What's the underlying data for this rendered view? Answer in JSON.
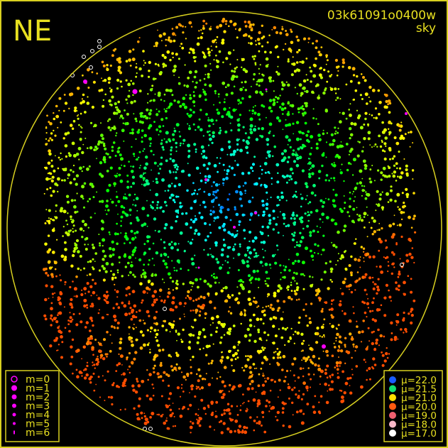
{
  "header": {
    "direction": "NE",
    "frame_id": "03k61091o0400w",
    "frame_type": "sky"
  },
  "colors": {
    "frame": "#d8d020",
    "label_text": "#e8e020",
    "star_marker": "#ff00ff"
  },
  "magnitude_legend": [
    {
      "label": "m=0"
    },
    {
      "label": "m=1"
    },
    {
      "label": "m=2"
    },
    {
      "label": "m=3"
    },
    {
      "label": "m=4"
    },
    {
      "label": "m=5"
    },
    {
      "label": "m=6"
    }
  ],
  "brightness_legend": [
    {
      "label": "μ=22.0",
      "color": "#1a5cff"
    },
    {
      "label": "μ=21.5",
      "color": "#10e070"
    },
    {
      "label": "μ=21.0",
      "color": "#ffe000"
    },
    {
      "label": "μ=20.0",
      "color": "#ff5a10"
    },
    {
      "label": "μ=19.0",
      "color": "#f06070"
    },
    {
      "label": "μ=18.0",
      "color": "#f8b8c8"
    },
    {
      "label": "μ=17.0",
      "color": "#ffffff"
    }
  ]
}
